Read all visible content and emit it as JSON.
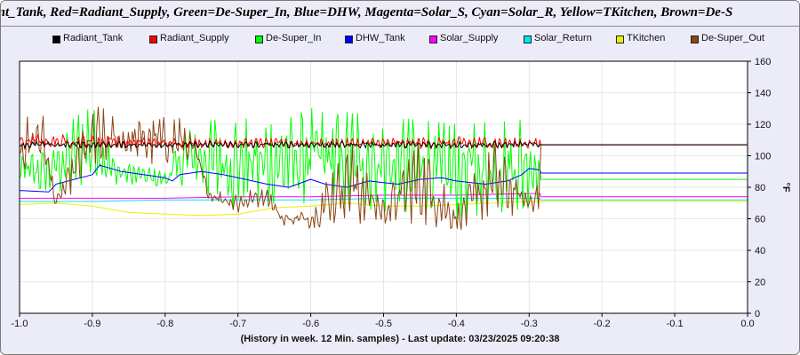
{
  "title": "iant_Tank, Red=Radiant_Supply, Green=De-Super_In, Blue=DHW, Magenta=Solar_S, Cyan=Solar_R, Yellow=TKitchen, Brown=De-S",
  "footer": "(History in week. 12 Min. samples) - Last update: 03/23/2025 09:20:38",
  "chart_data": {
    "type": "line",
    "xlim": [
      -1.0,
      0.0
    ],
    "ylim": [
      0,
      160
    ],
    "xticks": [
      "-1.0",
      "-0.9",
      "-0.8",
      "-0.7",
      "-0.6",
      "-0.5",
      "-0.4",
      "-0.3",
      "-0.2",
      "-0.1",
      "0.0"
    ],
    "yticks": [
      "0",
      "20",
      "40",
      "60",
      "80",
      "100",
      "120",
      "140",
      "160"
    ],
    "ylabel": "°F",
    "grid": true,
    "legend_position": "top",
    "series": [
      {
        "name": "Radiant_Tank",
        "color": "#000000",
        "oscillating": true,
        "x": [
          -1.0,
          -0.9,
          -0.8,
          -0.7,
          -0.6,
          -0.5,
          -0.4,
          -0.285,
          -0.284,
          0.0
        ],
        "base": [
          107,
          107,
          107,
          107,
          107,
          107,
          107,
          107,
          107,
          107
        ],
        "amp": [
          2,
          2,
          2,
          2,
          2,
          2,
          2,
          2,
          0,
          0
        ]
      },
      {
        "name": "Radiant_Supply",
        "color": "#ff0000",
        "oscillating": true,
        "x": [
          -1.0,
          -0.9,
          -0.8,
          -0.7,
          -0.6,
          -0.5,
          -0.4,
          -0.285,
          -0.284,
          0.0
        ],
        "base": [
          109,
          109,
          108,
          108,
          108,
          108,
          108,
          108,
          107,
          107
        ],
        "amp": [
          5,
          4,
          3,
          3,
          3,
          3,
          4,
          3,
          0,
          0
        ]
      },
      {
        "name": "De-Super_In",
        "color": "#00ff00",
        "oscillating": true,
        "x": [
          -1.0,
          -0.96,
          -0.9,
          -0.87,
          -0.8,
          -0.77,
          -0.7,
          -0.65,
          -0.6,
          -0.5,
          -0.4,
          -0.3,
          -0.285,
          -0.284,
          0.0
        ],
        "base": [
          90,
          90,
          110,
          90,
          85,
          100,
          95,
          95,
          100,
          95,
          90,
          95,
          95,
          85,
          85
        ],
        "amp": [
          12,
          14,
          28,
          8,
          5,
          20,
          30,
          25,
          30,
          30,
          30,
          28,
          20,
          0,
          0
        ]
      },
      {
        "name": "DHW_Tank",
        "color": "#0000ff",
        "oscillating": false,
        "x": [
          -1.0,
          -0.96,
          -0.95,
          -0.9,
          -0.89,
          -0.86,
          -0.83,
          -0.8,
          -0.79,
          -0.78,
          -0.75,
          -0.72,
          -0.7,
          -0.68,
          -0.66,
          -0.63,
          -0.6,
          -0.58,
          -0.55,
          -0.52,
          -0.5,
          -0.48,
          -0.45,
          -0.42,
          -0.4,
          -0.38,
          -0.36,
          -0.33,
          -0.31,
          -0.3,
          -0.285,
          -0.284,
          0.0
        ],
        "y": [
          78,
          77,
          82,
          88,
          94,
          90,
          88,
          86,
          84,
          88,
          90,
          88,
          86,
          84,
          82,
          80,
          85,
          82,
          80,
          84,
          83,
          82,
          85,
          86,
          84,
          83,
          82,
          84,
          88,
          92,
          91,
          89,
          89
        ]
      },
      {
        "name": "Solar_Supply",
        "color": "#ff00ff",
        "oscillating": false,
        "x": [
          -1.0,
          -0.9,
          -0.8,
          -0.7,
          -0.6,
          -0.5,
          -0.4,
          -0.3,
          -0.285,
          -0.284,
          0.0
        ],
        "y": [
          73,
          73,
          73,
          74,
          74,
          75,
          75,
          76,
          76,
          74,
          74
        ]
      },
      {
        "name": "Solar_Return",
        "color": "#00e5ee",
        "oscillating": false,
        "x": [
          -1.0,
          -0.9,
          -0.8,
          -0.7,
          -0.6,
          -0.5,
          -0.4,
          -0.3,
          -0.285,
          -0.284,
          0.0
        ],
        "y": [
          71,
          71,
          72,
          72,
          72,
          73,
          73,
          73,
          73,
          72,
          72
        ]
      },
      {
        "name": "TKitchen",
        "color": "#eeee00",
        "oscillating": false,
        "x": [
          -1.0,
          -0.95,
          -0.9,
          -0.85,
          -0.8,
          -0.75,
          -0.7,
          -0.65,
          -0.6,
          -0.55,
          -0.5,
          -0.45,
          -0.4,
          -0.35,
          -0.3,
          -0.285,
          -0.284,
          0.0
        ],
        "y": [
          69,
          70,
          68,
          64,
          63,
          62,
          63,
          67,
          68,
          70,
          68,
          68,
          69,
          70,
          71,
          71,
          71,
          71
        ]
      },
      {
        "name": "De-Super_Out",
        "color": "#8b4513",
        "oscillating": true,
        "x": [
          -1.0,
          -0.97,
          -0.95,
          -0.9,
          -0.85,
          -0.8,
          -0.78,
          -0.76,
          -0.74,
          -0.7,
          -0.66,
          -0.64,
          -0.6,
          -0.55,
          -0.5,
          -0.45,
          -0.4,
          -0.35,
          -0.3,
          -0.285,
          -0.284,
          0.0
        ],
        "base": [
          105,
          115,
          70,
          110,
          110,
          110,
          110,
          105,
          75,
          70,
          75,
          60,
          60,
          85,
          65,
          85,
          60,
          85,
          70,
          80,
          107,
          107
        ],
        "amp": [
          15,
          18,
          3,
          22,
          15,
          15,
          15,
          5,
          3,
          6,
          6,
          4,
          6,
          28,
          8,
          28,
          8,
          25,
          6,
          15,
          0,
          0
        ]
      }
    ]
  }
}
